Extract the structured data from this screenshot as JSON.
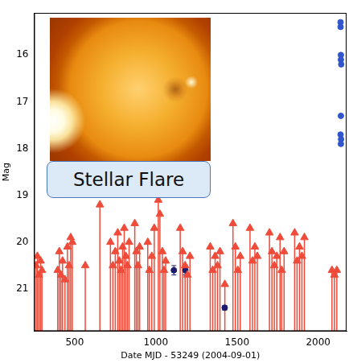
{
  "chart_data": {
    "type": "scatter",
    "xlabel": "Date MJD - 53249 (2004-09-01)",
    "ylabel": "Mag",
    "annotation": "Stellar Flare",
    "xlim": [
      250,
      2175
    ],
    "ylim": [
      21.9,
      15.1
    ],
    "xticks": [
      500,
      1000,
      1500,
      2000
    ],
    "yticks": [
      16,
      17,
      18,
      19,
      20,
      21
    ],
    "grid": false,
    "series": [
      {
        "type": "upper_limit",
        "color": "#ee4b3a",
        "marker": "triangle",
        "x": [
          262,
          270,
          280,
          290,
          298,
          395,
          405,
          415,
          425,
          440,
          455,
          465,
          475,
          485,
          565,
          655,
          720,
          735,
          750,
          765,
          775,
          785,
          795,
          805,
          815,
          825,
          835,
          870,
          880,
          890,
          900,
          950,
          960,
          975,
          990,
          1015,
          1025,
          1040,
          1050,
          1060,
          1150,
          1165,
          1180,
          1195,
          1210,
          1335,
          1350,
          1365,
          1380,
          1395,
          1425,
          1475,
          1490,
          1505,
          1520,
          1580,
          1595,
          1610,
          1625,
          1700,
          1715,
          1730,
          1745,
          1765,
          1775,
          1790,
          1855,
          1870,
          1885,
          1900,
          1915,
          2085,
          2100,
          2115
        ],
        "values": [
          20.5,
          20.3,
          20.7,
          20.4,
          20.6,
          20.6,
          20.2,
          20.7,
          20.4,
          20.8,
          20.1,
          20.5,
          19.9,
          20.0,
          20.5,
          19.2,
          20.0,
          20.5,
          20.2,
          19.8,
          20.4,
          20.6,
          20.1,
          19.7,
          20.3,
          20.5,
          20.0,
          19.6,
          20.2,
          20.5,
          20.1,
          20.0,
          20.6,
          20.3,
          19.7,
          19.1,
          19.4,
          20.2,
          20.6,
          20.4,
          19.7,
          20.2,
          20.5,
          20.7,
          20.3,
          20.1,
          20.6,
          20.3,
          20.5,
          20.2,
          20.9,
          19.6,
          20.1,
          20.6,
          20.3,
          19.7,
          20.4,
          20.1,
          20.3,
          19.8,
          20.2,
          20.5,
          20.3,
          19.9,
          20.6,
          20.2,
          19.8,
          20.4,
          20.1,
          20.3,
          19.9,
          20.6,
          20.7,
          20.6
        ]
      },
      {
        "type": "detection",
        "color": "#1a1a6e",
        "marker": "circle",
        "x": [
          1111,
          1182,
          1424
        ],
        "values": [
          20.6,
          20.6,
          21.4
        ],
        "errors": [
          0.1,
          0.1,
          0.05
        ]
      },
      {
        "type": "detection",
        "color": "#3355cc",
        "marker": "circle",
        "x": [
          2138,
          2138,
          2140,
          2140,
          2142,
          2140,
          2138,
          2141,
          2140
        ],
        "values": [
          15.3,
          15.4,
          16.0,
          16.1,
          16.2,
          17.3,
          17.7,
          17.8,
          17.9
        ]
      }
    ]
  }
}
